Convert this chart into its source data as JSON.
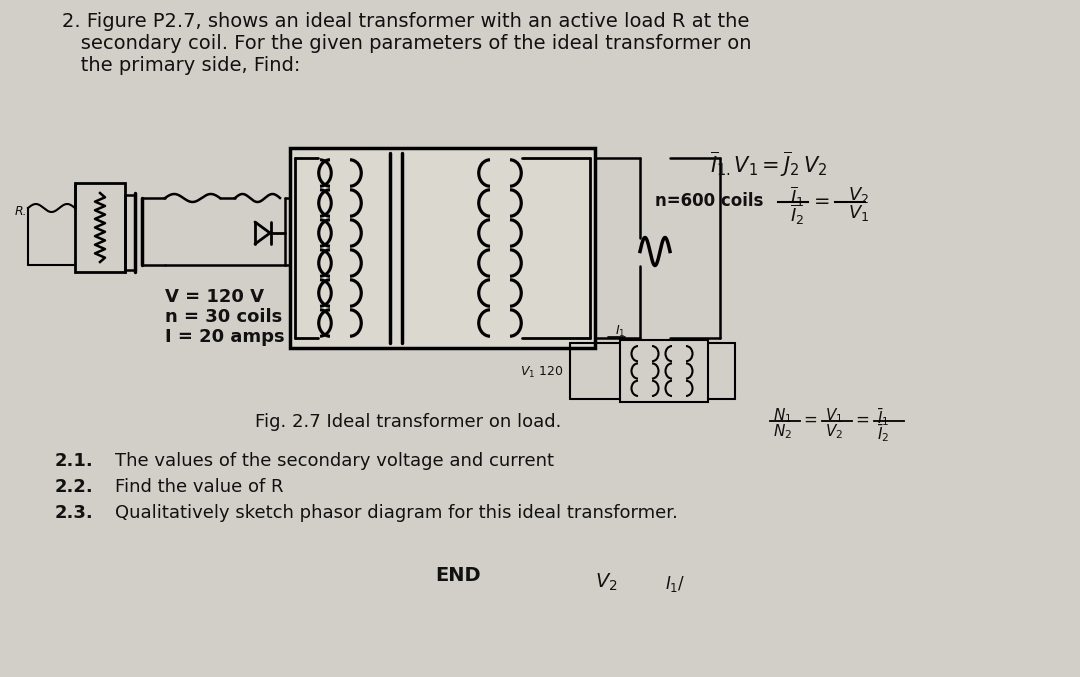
{
  "bg_color": "#c8c4bc",
  "text_color": "#111111",
  "title_line1": "2. Figure P2.7, shows an ideal transformer with an active load R at the",
  "title_line2": "   secondary coil. For the given parameters of the ideal transformer on",
  "title_line3": "   the primary side, Find:",
  "param1": "V = 120 V",
  "param2": "n = 30 coils",
  "param3": "I = 20 amps",
  "fig_caption": "Fig. 2.7 Ideal transformer on load.",
  "n_coils": "n=600 coils",
  "item_nums": [
    "2.1.",
    "2.2.",
    "2.3."
  ],
  "item_texts": [
    "The values of the secondary voltage and current",
    "Find the value of R",
    "Qualitatively sketch phasor diagram for this ideal transformer."
  ],
  "end_text": "END"
}
